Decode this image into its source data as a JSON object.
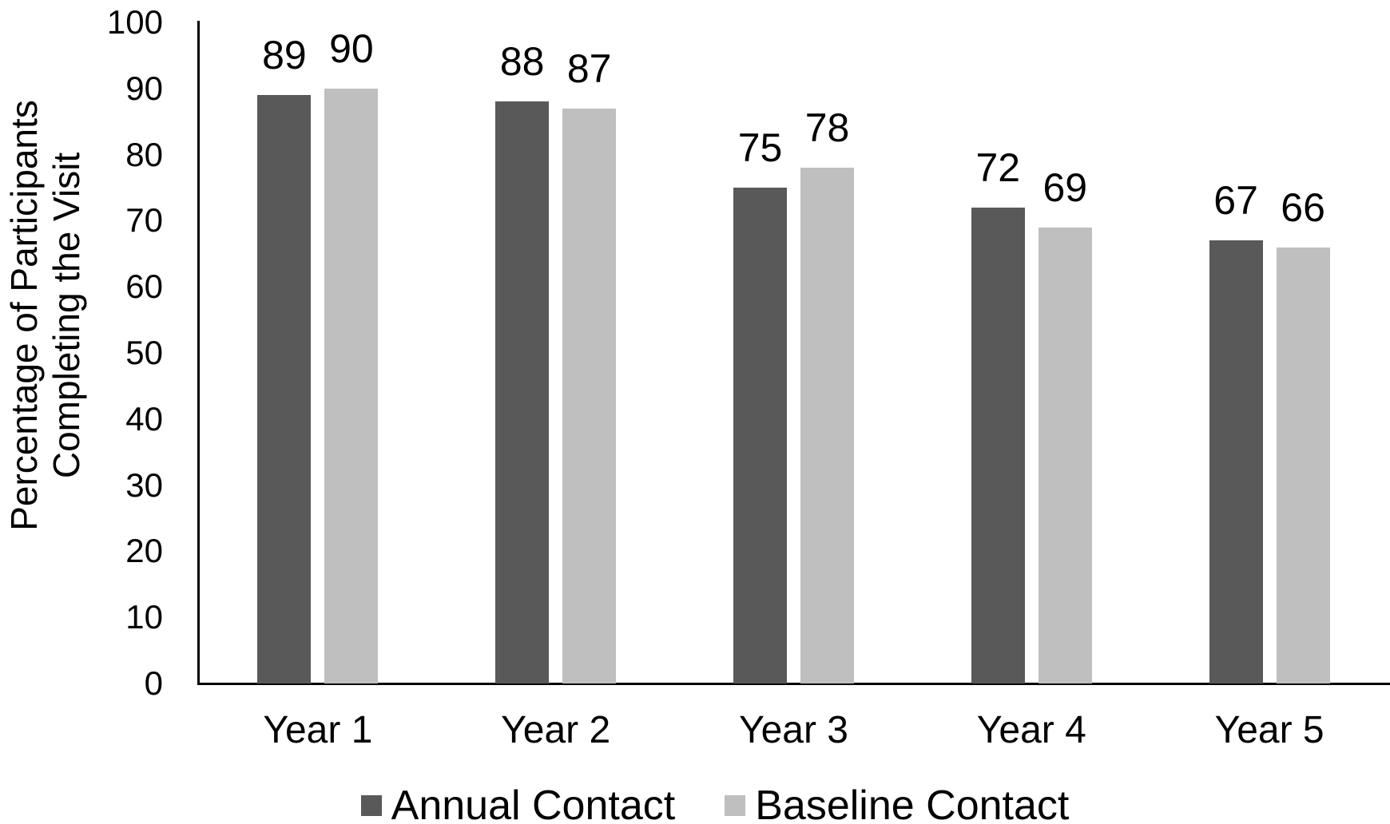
{
  "chart_data": {
    "type": "bar",
    "title": "",
    "categories": [
      "Year 1",
      "Year 2",
      "Year 3",
      "Year 4",
      "Year 5"
    ],
    "series": [
      {
        "name": "Annual Contact",
        "color": "#595959",
        "values": [
          89,
          88,
          75,
          72,
          67
        ]
      },
      {
        "name": "Baseline Contact",
        "color": "#bfbfbf",
        "values": [
          90,
          87,
          78,
          69,
          66
        ]
      }
    ],
    "xlabel": "",
    "ylabel_line1": "Percentage of Participants",
    "ylabel_line2": "Completing the Visit",
    "ylim": [
      0,
      100
    ],
    "yticks": [
      0,
      10,
      20,
      30,
      40,
      50,
      60,
      70,
      80,
      90,
      100
    ],
    "grid": false,
    "bar_value_labels_shown": true,
    "legend_position": "bottom",
    "axis_color": "#000000",
    "text_color": "#000000",
    "background_color": "#ffffff"
  }
}
